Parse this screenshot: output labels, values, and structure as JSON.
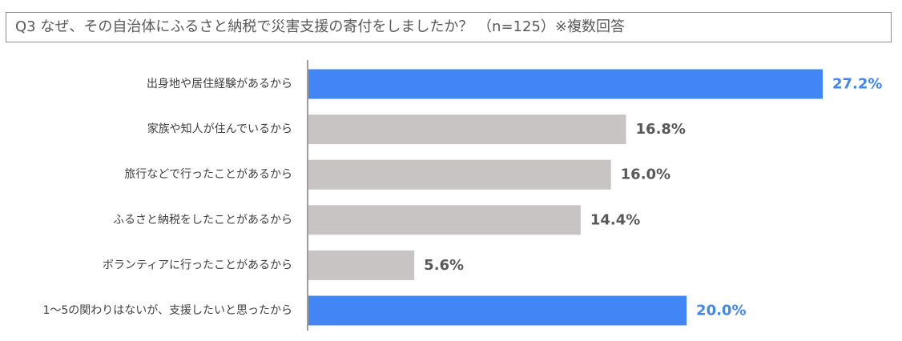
{
  "title": "Q3 なぜ、その自治体にふるさと納税で災害支援の寄付をしましたか？ （n=125）※複数回答",
  "colors": {
    "highlight": "#4285f4",
    "normal": "#c8c4c3",
    "highlight_text": "#4285f4",
    "normal_text": "#595959",
    "axis": "#7f7f7f"
  },
  "chart_data": {
    "type": "bar",
    "orientation": "horizontal",
    "categories": [
      "出身地や居住経験があるから",
      "家族や知人が住んでいるから",
      "旅行などで行ったことがあるから",
      "ふるさと納税をしたことがあるから",
      "ボランティアに行ったことがあるから",
      "1～5の関わりはないが、支援したいと思ったから"
    ],
    "values": [
      27.2,
      16.8,
      16.0,
      14.4,
      5.6,
      20.0
    ],
    "value_labels": [
      "27.2%",
      "16.8%",
      "16.0%",
      "14.4%",
      "5.6%",
      "20.0%"
    ],
    "highlighted": [
      true,
      false,
      false,
      false,
      false,
      true
    ],
    "xlim": [
      0,
      30
    ],
    "grid": false,
    "legend": "none"
  }
}
